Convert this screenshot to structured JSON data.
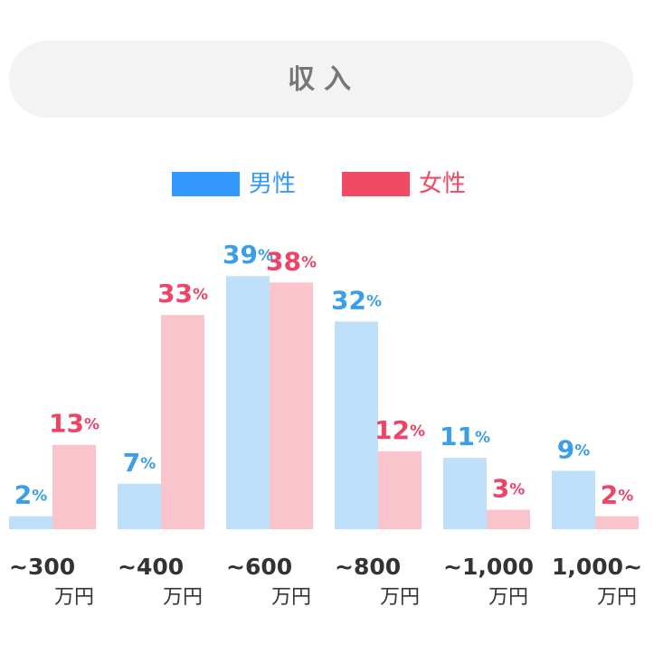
{
  "title": "収入",
  "chart_data": {
    "type": "grouped_bar",
    "categories": [
      "~300",
      "~400",
      "~600",
      "~800",
      "~1,000",
      "1,000~"
    ],
    "category_unit": "万円",
    "series": [
      {
        "name": "男性",
        "color": "#bfe0fa",
        "label_color": "#3a9ee8",
        "legend_color": "#3399ff",
        "values": [
          2,
          7,
          39,
          32,
          11,
          9
        ],
        "value_labels": [
          "2%",
          "7%",
          "39%",
          "32%",
          "11%",
          "9%"
        ]
      },
      {
        "name": "女性",
        "color": "#f9c4cc",
        "label_color": "#ee4466",
        "legend_color": "#f04a64",
        "values": [
          13,
          33,
          38,
          12,
          3,
          2
        ],
        "value_labels": [
          "13%",
          "33%",
          "38%",
          "12%",
          "3%",
          "2%"
        ]
      }
    ],
    "ylim": [
      0,
      40
    ]
  }
}
